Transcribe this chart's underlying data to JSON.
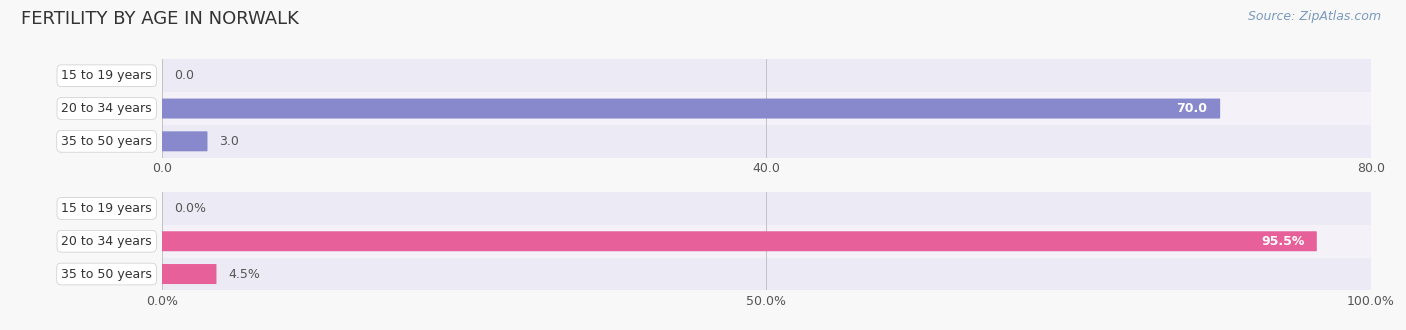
{
  "title": "FERTILITY BY AGE IN NORWALK",
  "source": "Source: ZipAtlas.com",
  "top_chart": {
    "categories": [
      "15 to 19 years",
      "20 to 34 years",
      "35 to 50 years"
    ],
    "values": [
      0.0,
      70.0,
      3.0
    ],
    "xlim": [
      0,
      80.0
    ],
    "xticks": [
      0.0,
      40.0,
      80.0
    ],
    "bar_color": "#8888cc",
    "bar_color_light": "#bbbbee"
  },
  "bottom_chart": {
    "categories": [
      "15 to 19 years",
      "20 to 34 years",
      "35 to 50 years"
    ],
    "values": [
      0.0,
      95.5,
      4.5
    ],
    "xlim": [
      0,
      100.0
    ],
    "xticks": [
      0.0,
      50.0,
      100.0
    ],
    "bar_color": "#e8609a",
    "bar_color_light": "#f0a0c0"
  },
  "fig_bg_color": "#f8f8f8",
  "title_color": "#333333",
  "title_fontsize": 13,
  "source_fontsize": 9,
  "source_color": "#7a9abf",
  "label_fontsize": 9,
  "label_color_inside": "#ffffff",
  "label_color_outside": "#555555",
  "tick_fontsize": 9,
  "cat_fontsize": 9,
  "bar_height": 0.55,
  "row_bg_colors": [
    "#eceaf4",
    "#f4f2f8"
  ]
}
